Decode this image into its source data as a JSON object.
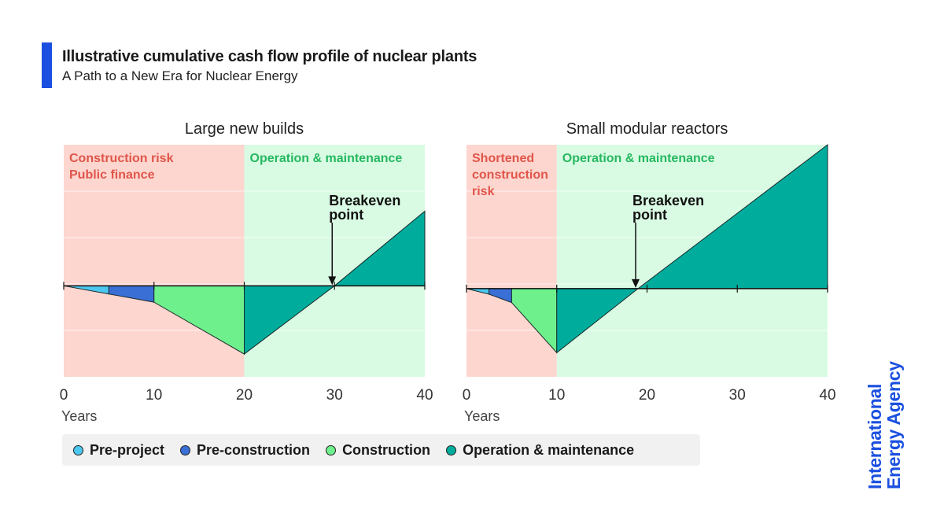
{
  "header": {
    "title": "Illustrative cumulative cash flow profile of nuclear plants",
    "subtitle": "A Path to a New Era for Nuclear Energy",
    "accent_color": "#1a4fe0"
  },
  "brand": {
    "line1": "International",
    "line2": "Energy Agency",
    "color": "#1a4fe0"
  },
  "colors": {
    "pre_project": "#4cc8f0",
    "pre_construction": "#3a6fd6",
    "construction": "#6ef08c",
    "operation": "#00ad9d",
    "risk_bg": "#fdd6cf",
    "om_bg": "#d9fbe3",
    "risk_text": "#e0554a",
    "om_text": "#25b860"
  },
  "legend": {
    "items": [
      {
        "label": "Pre-project",
        "key": "pre_project"
      },
      {
        "label": "Pre-construction",
        "key": "pre_construction"
      },
      {
        "label": "Construction",
        "key": "construction"
      },
      {
        "label": "Operation & maintenance",
        "key": "operation"
      }
    ]
  },
  "chart_data": [
    {
      "type": "area",
      "title": "Large new builds",
      "xlabel": "Years",
      "ylabel": "",
      "xlim": [
        0,
        40
      ],
      "ylim": [
        -1.0,
        1.55
      ],
      "xticks": [
        "0",
        "10",
        "20",
        "30",
        "40"
      ],
      "phases": [
        {
          "name": "Construction risk\nPublic finance",
          "start": 0,
          "end": 20,
          "type": "risk"
        },
        {
          "name": "Operation & maintenance",
          "start": 20,
          "end": 40,
          "type": "om"
        }
      ],
      "series": [
        {
          "name": "Pre-project",
          "x": [
            0,
            5
          ],
          "y": [
            0,
            -0.09
          ]
        },
        {
          "name": "Pre-construction",
          "x": [
            5,
            10
          ],
          "y": [
            -0.09,
            -0.18
          ]
        },
        {
          "name": "Construction",
          "x": [
            10,
            20
          ],
          "y": [
            -0.18,
            -0.75
          ]
        },
        {
          "name": "Operation & maintenance",
          "x": [
            20,
            30,
            40
          ],
          "y": [
            -0.75,
            0,
            0.82
          ]
        }
      ],
      "annotation": {
        "text": "Breakeven\npoint",
        "x": 30
      }
    },
    {
      "type": "area",
      "title": "Small modular reactors",
      "xlabel": "Years",
      "ylabel": "",
      "xlim": [
        0,
        40
      ],
      "ylim": [
        -0.95,
        1.55
      ],
      "xticks": [
        "0",
        "10",
        "20",
        "30",
        "40"
      ],
      "phases": [
        {
          "name": "Shortened\nconstruction\nrisk",
          "start": 0,
          "end": 10,
          "type": "risk"
        },
        {
          "name": "Operation & maintenance",
          "start": 10,
          "end": 40,
          "type": "om"
        }
      ],
      "series": [
        {
          "name": "Pre-project",
          "x": [
            0,
            2.5
          ],
          "y": [
            0,
            -0.06
          ]
        },
        {
          "name": "Pre-construction",
          "x": [
            2.5,
            5
          ],
          "y": [
            -0.06,
            -0.15
          ]
        },
        {
          "name": "Construction",
          "x": [
            5,
            10
          ],
          "y": [
            -0.15,
            -0.69
          ]
        },
        {
          "name": "Operation & maintenance",
          "x": [
            10,
            19,
            40
          ],
          "y": [
            -0.69,
            0,
            1.55
          ]
        }
      ],
      "annotation": {
        "text": "Breakeven\npoint",
        "x": 19
      }
    }
  ]
}
